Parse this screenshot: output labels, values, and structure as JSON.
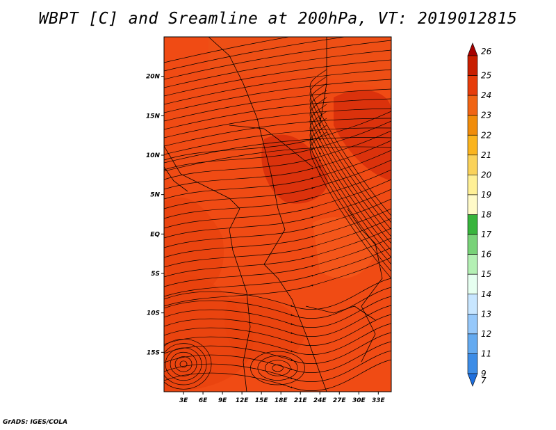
{
  "title": "WBPT [C] and Sreamline at 200hPa, VT: 2019012815",
  "footer": "GrADS: IGES/COLA",
  "map": {
    "lon_range": [
      0,
      35
    ],
    "lat_range": [
      -20,
      25
    ],
    "x_ticks": [
      {
        "value": 3,
        "label": "3E"
      },
      {
        "value": 6,
        "label": "6E"
      },
      {
        "value": 9,
        "label": "9E"
      },
      {
        "value": 12,
        "label": "12E"
      },
      {
        "value": 15,
        "label": "15E"
      },
      {
        "value": 18,
        "label": "18E"
      },
      {
        "value": 21,
        "label": "21E"
      },
      {
        "value": 24,
        "label": "24E"
      },
      {
        "value": 27,
        "label": "27E"
      },
      {
        "value": 30,
        "label": "30E"
      },
      {
        "value": 33,
        "label": "33E"
      }
    ],
    "y_ticks": [
      {
        "value": 20,
        "label": "20N"
      },
      {
        "value": 15,
        "label": "15N"
      },
      {
        "value": 10,
        "label": "10N"
      },
      {
        "value": 5,
        "label": "5N"
      },
      {
        "value": 0,
        "label": "EQ"
      },
      {
        "value": -5,
        "label": "5S"
      },
      {
        "value": -10,
        "label": "10S"
      },
      {
        "value": -15,
        "label": "15S"
      }
    ],
    "background_color": "#f04b14",
    "field_colors": [
      "#e8420e",
      "#f65a1c",
      "#d42a0a",
      "#ee5016"
    ]
  },
  "colorbar": {
    "levels": [
      "26",
      "25",
      "24",
      "23",
      "22",
      "21",
      "20",
      "19",
      "18",
      "17",
      "16",
      "15",
      "14",
      "13",
      "12",
      "11",
      "9",
      "7"
    ],
    "colors": [
      "#a50000",
      "#c81e00",
      "#e63c0a",
      "#f06414",
      "#f08c0a",
      "#fab41e",
      "#fad25a",
      "#fff096",
      "#fffac8",
      "#37b43c",
      "#78d278",
      "#b4f0b4",
      "#e6fff0",
      "#c8e6ff",
      "#96c8fa",
      "#64aaf0",
      "#3c8ce6",
      "#1e6edc"
    ]
  }
}
